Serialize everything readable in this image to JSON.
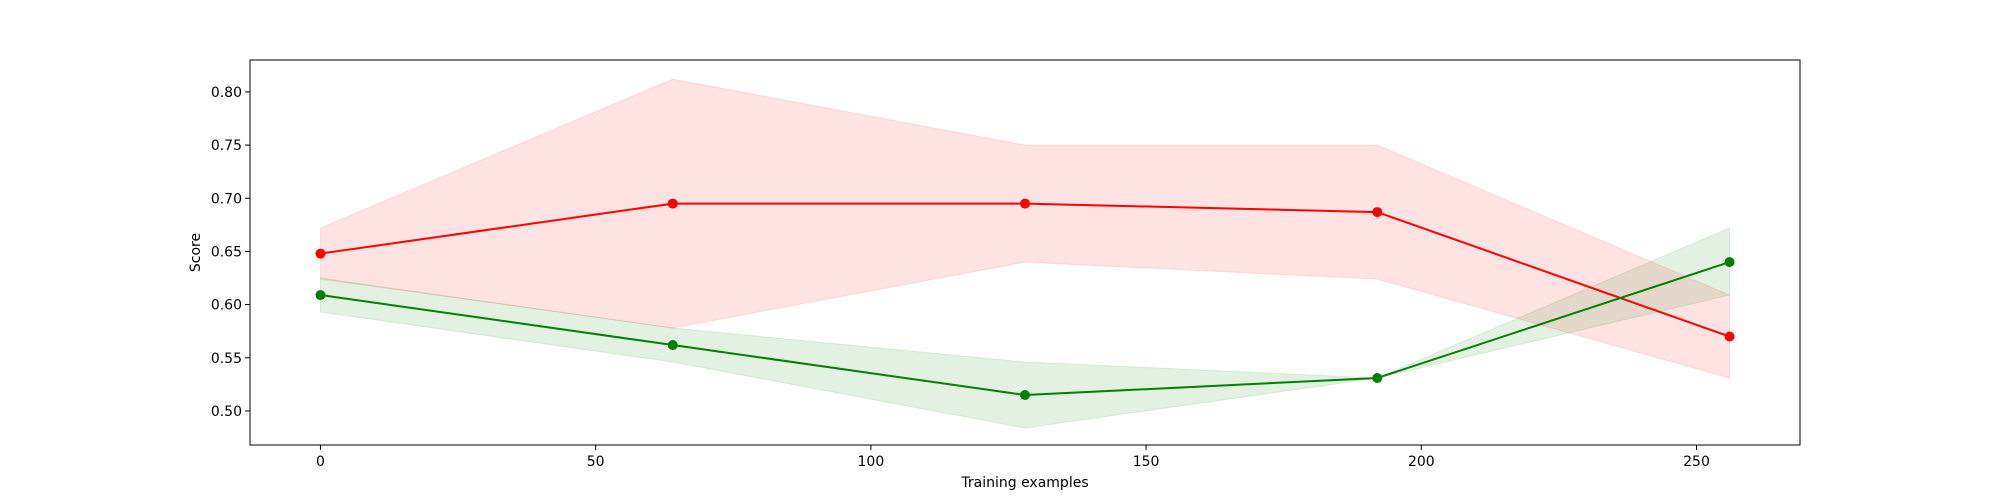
{
  "chart_data": {
    "type": "line",
    "title": "",
    "xlabel": "Training examples",
    "ylabel": "Score",
    "xlim": [
      -12.8,
      268.8
    ],
    "ylim": [
      0.468,
      0.83
    ],
    "x_ticks": [
      0,
      50,
      100,
      150,
      200,
      250
    ],
    "y_ticks": [
      0.5,
      0.55,
      0.6,
      0.65,
      0.7,
      0.75,
      0.8
    ],
    "x_tick_labels": [
      "0",
      "50",
      "100",
      "150",
      "200",
      "250"
    ],
    "y_tick_labels": [
      "0.50",
      "0.55",
      "0.60",
      "0.65",
      "0.70",
      "0.75",
      "0.80"
    ],
    "grid": false,
    "legend": "none",
    "x": [
      0,
      64,
      128,
      192,
      256
    ],
    "series": [
      {
        "color": "#ff0000",
        "band_color": "#ff0000",
        "values": [
          0.648,
          0.695,
          0.695,
          0.687,
          0.57
        ],
        "lower": [
          0.624,
          0.578,
          0.64,
          0.624,
          0.531
        ],
        "upper": [
          0.672,
          0.812,
          0.75,
          0.75,
          0.609
        ]
      },
      {
        "color": "#008000",
        "band_color": "#008000",
        "values": [
          0.609,
          0.562,
          0.515,
          0.531,
          0.64
        ],
        "lower": [
          0.593,
          0.546,
          0.484,
          0.531,
          0.609
        ],
        "upper": [
          0.625,
          0.578,
          0.546,
          0.531,
          0.672
        ]
      }
    ]
  }
}
